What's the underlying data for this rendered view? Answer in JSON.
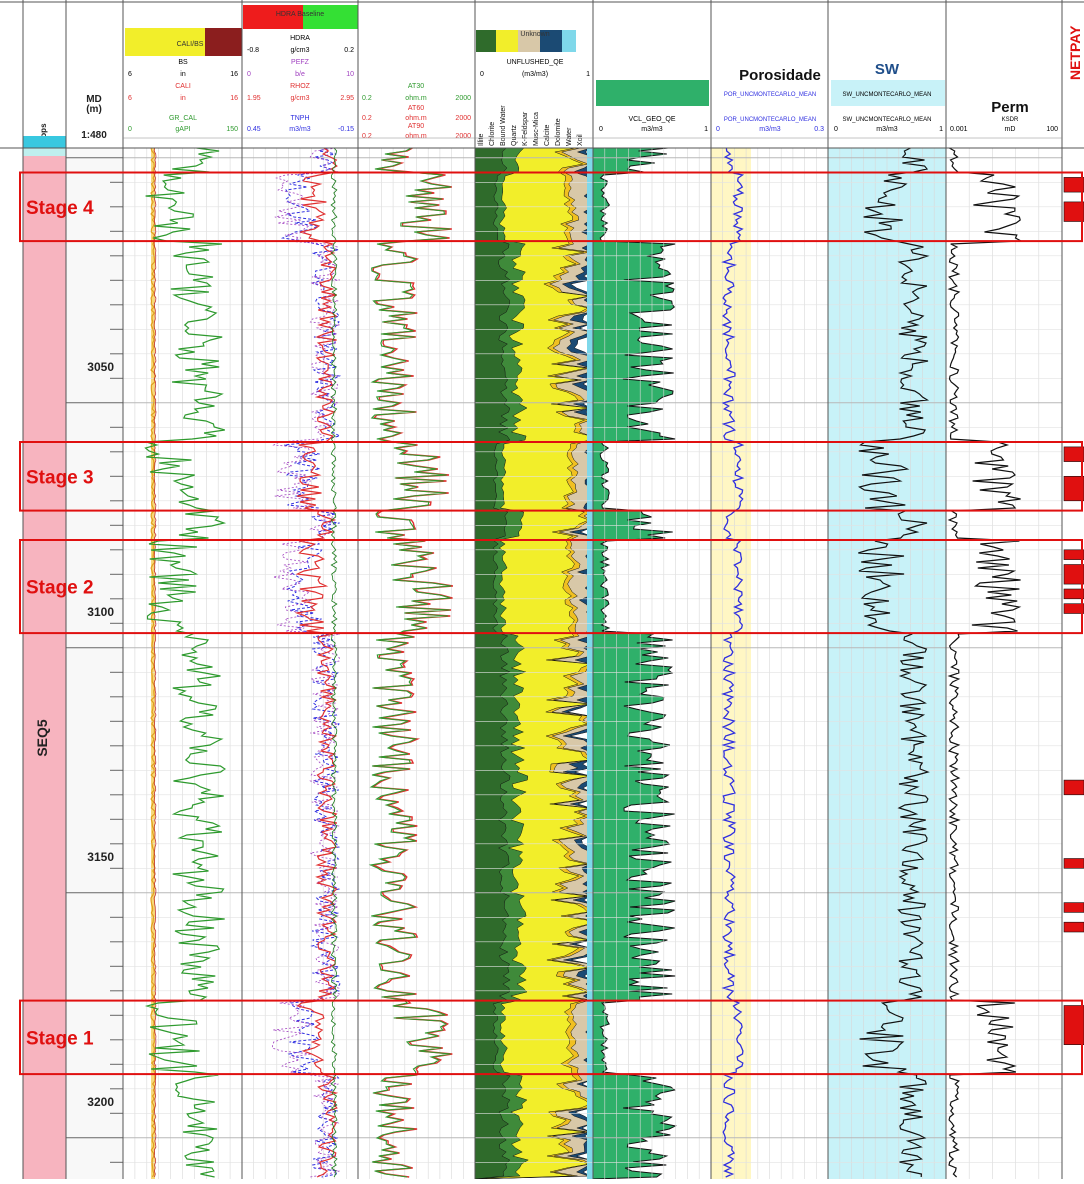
{
  "chart_data": {
    "type": "well-log",
    "depth": {
      "header": "MD\n(m)",
      "scale": "1:480",
      "range": [
        2998,
        3224
      ],
      "ticks": [
        3050,
        3100,
        3150,
        3200
      ]
    },
    "tops": {
      "header": "Tops",
      "zone": "SEQ5"
    },
    "stages": [
      {
        "label": "Stage 4",
        "top": 3003,
        "base": 3017
      },
      {
        "label": "Stage 3",
        "top": 3058,
        "base": 3072
      },
      {
        "label": "Stage 2",
        "top": 3078,
        "base": 3097
      },
      {
        "label": "Stage 1",
        "top": 3172,
        "base": 3187
      }
    ],
    "tracks": [
      {
        "key": "gr",
        "legend_top": "CALI/BS",
        "curves": [
          {
            "name": "BS",
            "unit": "in",
            "min": "6",
            "max": "16",
            "color": "#000000"
          },
          {
            "name": "CALI",
            "unit": "in",
            "min": "6",
            "max": "16",
            "color": "#e03030"
          },
          {
            "name": "GR_CAL",
            "unit": "gAPI",
            "min": "0",
            "max": "150",
            "color": "#2e9a2e"
          }
        ]
      },
      {
        "key": "dens",
        "legend_top": "HDRA Baseline",
        "curves": [
          {
            "name": "HDRA",
            "unit": "g/cm3",
            "min": "-0.8",
            "max": "0.2",
            "color": "#000000"
          },
          {
            "name": "PEFZ",
            "unit": "b/e",
            "min": "0",
            "max": "10",
            "color": "#a040c0"
          },
          {
            "name": "RHOZ",
            "unit": "g/cm3",
            "min": "1.95",
            "max": "2.95",
            "color": "#e03030"
          },
          {
            "name": "TNPH",
            "unit": "m3/m3",
            "min": "0.45",
            "max": "-0.15",
            "color": "#2f2fe0"
          }
        ]
      },
      {
        "key": "res",
        "curves": [
          {
            "name": "AT30",
            "unit": "ohm.m",
            "min": "0.2",
            "max": "2000",
            "color": "#2e9a2e"
          },
          {
            "name": "AT60",
            "unit": "ohm.m",
            "min": "0.2",
            "max": "2000",
            "color": "#e03030"
          },
          {
            "name": "AT90",
            "unit": "ohm.m",
            "min": "0.2",
            "max": "2000",
            "color": "#e03030"
          }
        ]
      },
      {
        "key": "min",
        "legend_top": "Unknown",
        "curves": [
          {
            "name": "UNFLUSHED_QE",
            "unit": "(m3/m3)",
            "min": "0",
            "max": "1",
            "color": "#000000"
          }
        ],
        "minerals": [
          "Illite",
          "Chlorite",
          "Bound Water",
          "Quartz",
          "K-Feldspar",
          "Musc-Mica",
          "Calcite",
          "Dolomite",
          "Water",
          "Xoil"
        ]
      },
      {
        "key": "vcl",
        "curves": [
          {
            "name": "VCL_GEO_QE",
            "unit": "m3/m3",
            "min": "0",
            "max": "1",
            "color": "#000000"
          }
        ]
      },
      {
        "key": "por",
        "title": "Porosidade",
        "curves": [
          {
            "name": "POR_UNCMONTECARLO_MEAN",
            "unit": "m3/m3",
            "min": "0",
            "max": "0.3",
            "color": "#2f2fe0"
          }
        ]
      },
      {
        "key": "sw",
        "title": "SW",
        "curves": [
          {
            "name": "SW_UNCMONTECARLO_MEAN",
            "unit": "m3/m3",
            "min": "0",
            "max": "1",
            "color": "#000000"
          }
        ]
      },
      {
        "key": "perm",
        "title": "Perm",
        "curves": [
          {
            "name": "KSDR",
            "unit": "mD",
            "min": "0.001",
            "max": "100",
            "color": "#000000"
          }
        ]
      },
      {
        "key": "net",
        "title": "NETPAY"
      }
    ],
    "netpay_intervals": [
      [
        3004,
        3007
      ],
      [
        3009,
        3013
      ],
      [
        3059,
        3062
      ],
      [
        3065,
        3070
      ],
      [
        3080,
        3082
      ],
      [
        3083,
        3087
      ],
      [
        3088,
        3090
      ],
      [
        3091,
        3093
      ],
      [
        3127,
        3130
      ],
      [
        3143,
        3145
      ],
      [
        3152,
        3154
      ],
      [
        3156,
        3158
      ],
      [
        3173,
        3181
      ]
    ]
  },
  "colors": {
    "tops_band": "#f7b4bf",
    "stage_box": "#e01010",
    "stage_text": "#e01010",
    "sw_fill": "#c8f2f8",
    "por_fill": "#fff7c4",
    "quartz": "#f2ee2a",
    "clay_dark": "#2f6b2b",
    "clay_mid": "#3f8a3a",
    "calcite": "#d8c8a8",
    "water": "#1b4a73",
    "vcl_fill": "#2fb06a",
    "netpay": "#e01010",
    "grid": "#d8d8d8"
  }
}
